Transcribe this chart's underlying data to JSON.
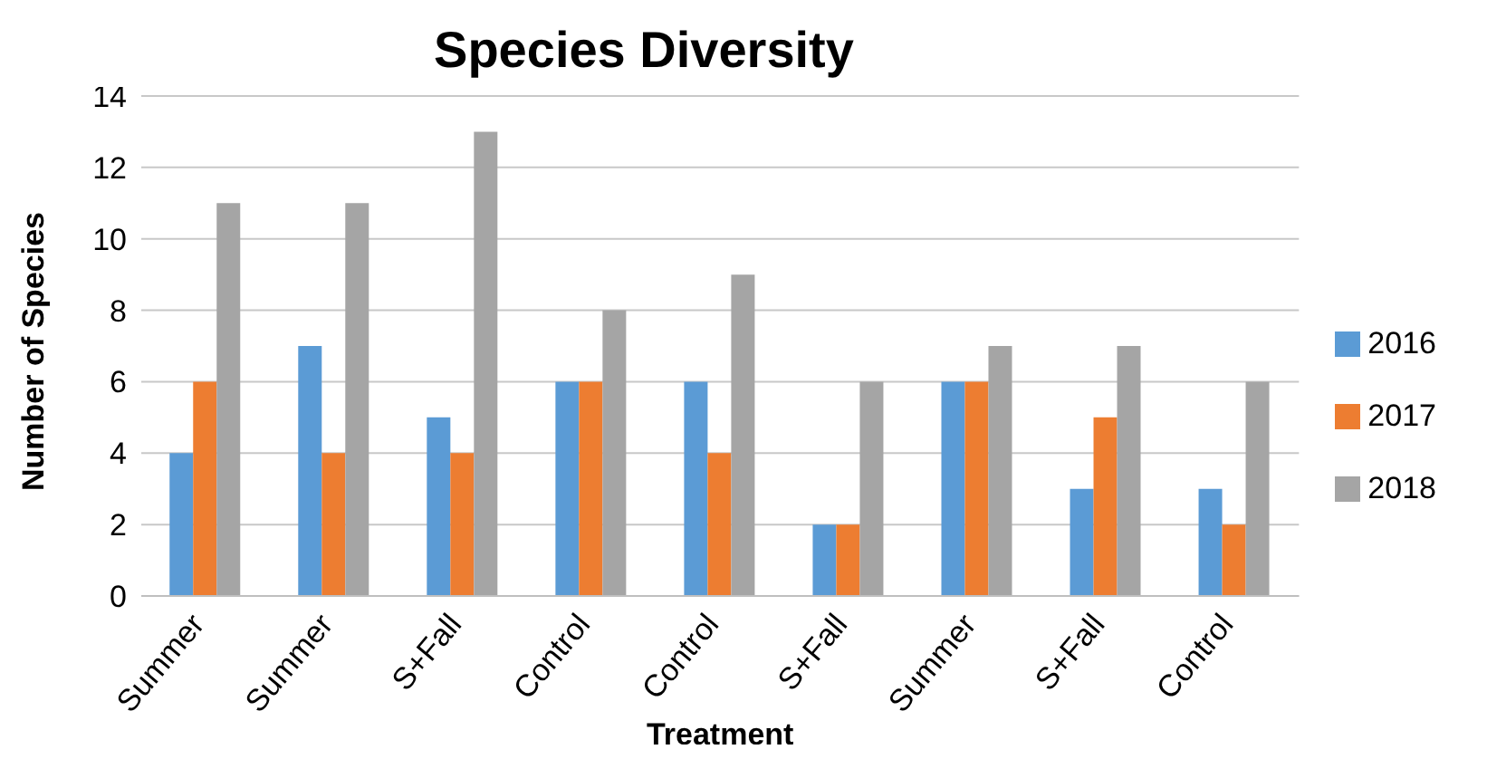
{
  "chart_data": {
    "type": "bar",
    "title": "Species Diversity",
    "xlabel": "Treatment",
    "ylabel": "Number of Species",
    "categories": [
      "Summer",
      "Summer",
      "S+Fall",
      "Control",
      "Control",
      "S+Fall",
      "Summer",
      "S+Fall",
      "Control"
    ],
    "series": [
      {
        "name": "2016",
        "color": "#5b9bd5",
        "values": [
          4,
          7,
          5,
          6,
          6,
          2,
          6,
          3,
          3
        ]
      },
      {
        "name": "2017",
        "color": "#ed7d31",
        "values": [
          6,
          4,
          4,
          6,
          4,
          2,
          6,
          5,
          2
        ]
      },
      {
        "name": "2018",
        "color": "#a5a5a5",
        "values": [
          11,
          11,
          13,
          8,
          9,
          6,
          7,
          7,
          6
        ]
      }
    ],
    "ylim": [
      0,
      14
    ],
    "yticks": [
      0,
      2,
      4,
      6,
      8,
      10,
      12,
      14
    ],
    "grid": "y",
    "legend": "right"
  }
}
